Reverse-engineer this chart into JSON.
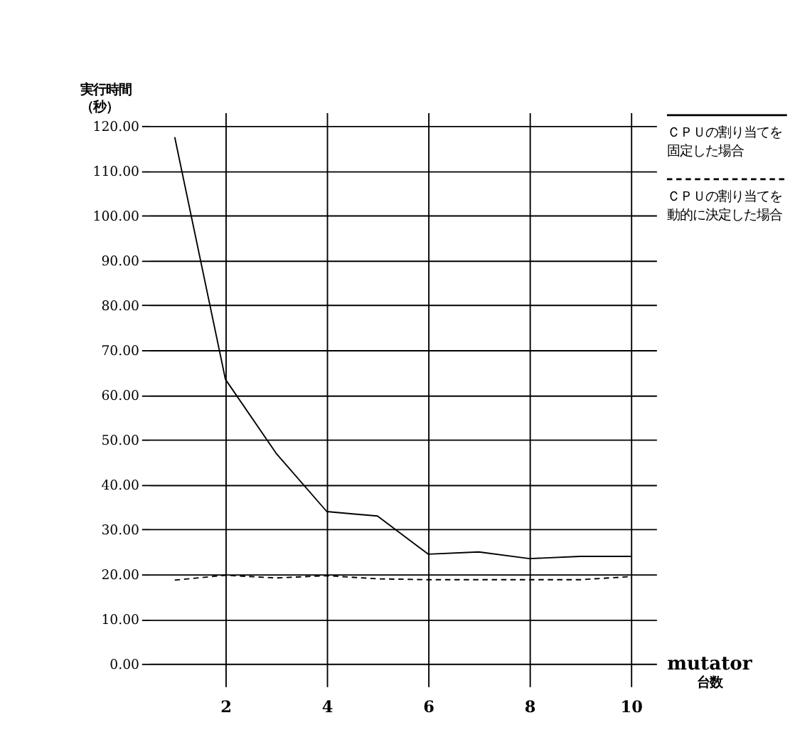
{
  "chart_data": {
    "type": "line",
    "ylabel": "実行時間（秒）",
    "xlabel": "mutator 台数",
    "x": [
      1,
      2,
      3,
      4,
      5,
      6,
      7,
      8,
      9,
      10
    ],
    "xlim": [
      0.5,
      10.5
    ],
    "xticks": [
      2,
      4,
      6,
      8,
      10
    ],
    "ylim": [
      -5,
      123
    ],
    "yticks": [
      {
        "value": 0,
        "label": "0.00"
      },
      {
        "value": 10,
        "label": "10.00"
      },
      {
        "value": 20,
        "label": "20.00"
      },
      {
        "value": 30,
        "label": "30.00"
      },
      {
        "value": 40,
        "label": "40.00"
      },
      {
        "value": 50,
        "label": "50.00"
      },
      {
        "value": 60,
        "label": "60.00"
      },
      {
        "value": 70,
        "label": "70.00"
      },
      {
        "value": 80,
        "label": "80.00"
      },
      {
        "value": 90,
        "label": "90.00"
      },
      {
        "value": 100,
        "label": "100.00"
      },
      {
        "value": 110,
        "label": "110.00"
      },
      {
        "value": 120,
        "label": "120.00"
      }
    ],
    "series": [
      {
        "name": "ＣＰＵの割り当てを固定した場合",
        "color": "#000000",
        "line_style": "solid",
        "values": [
          117.5,
          63.5,
          47,
          34,
          33,
          24.5,
          25,
          23.5,
          24,
          24
        ]
      },
      {
        "name": "ＣＰＵの割り当てを動的に決定した場合",
        "color": "#000000",
        "line_style": "dashed",
        "values": [
          18.7,
          19.8,
          19.2,
          19.7,
          19,
          18.8,
          18.8,
          18.8,
          18.8,
          19.5
        ]
      }
    ],
    "grid": true,
    "legend": "right"
  }
}
